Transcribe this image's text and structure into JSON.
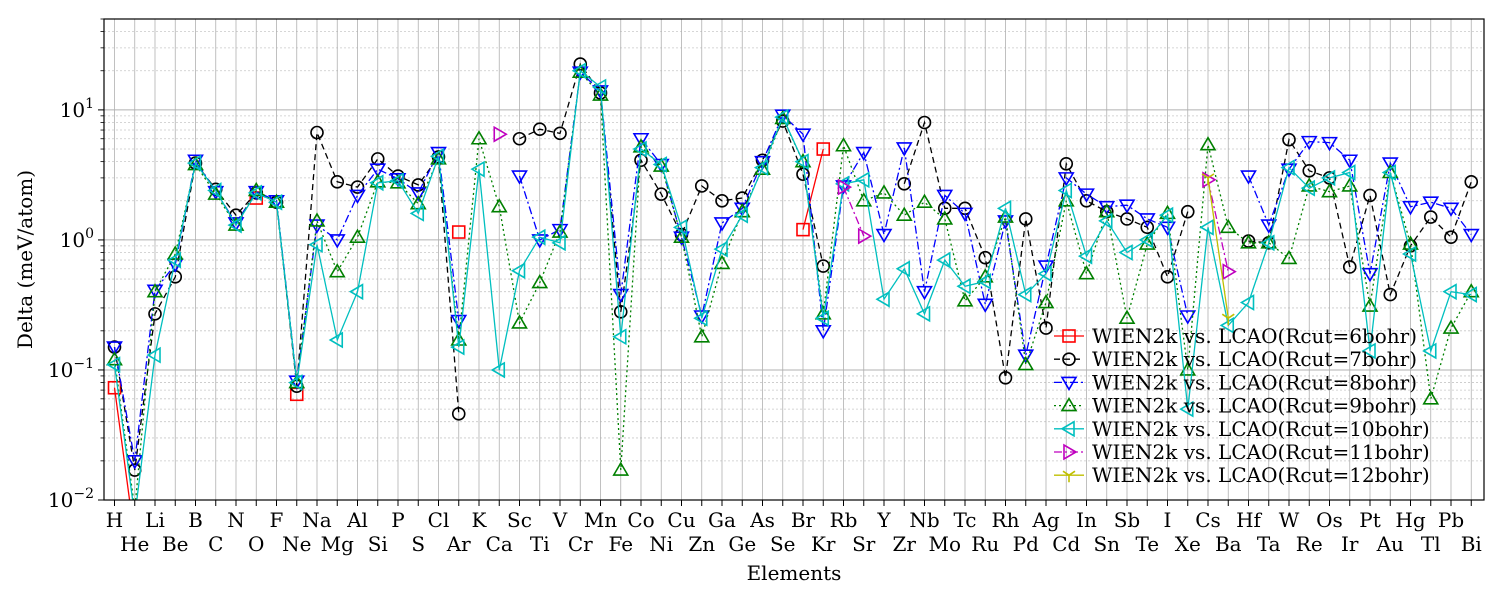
{
  "chart_data": {
    "type": "line",
    "xlabel": "Elements",
    "ylabel": "Delta (meV/atom)",
    "yscale": "log",
    "ylim": [
      0.01,
      50
    ],
    "ytick_labels": [
      {
        "value": 0.01,
        "base": "10",
        "exp": "−2"
      },
      {
        "value": 0.1,
        "base": "10",
        "exp": "−1"
      },
      {
        "value": 1,
        "base": "10",
        "exp": "0"
      },
      {
        "value": 10,
        "base": "10",
        "exp": "1"
      }
    ],
    "grid": true,
    "legend_position": "lower-right",
    "categories": [
      "H",
      "He",
      "Li",
      "Be",
      "B",
      "C",
      "N",
      "O",
      "F",
      "Ne",
      "Na",
      "Mg",
      "Al",
      "Si",
      "P",
      "S",
      "Cl",
      "Ar",
      "K",
      "Ca",
      "Sc",
      "Ti",
      "V",
      "Cr",
      "Mn",
      "Fe",
      "Co",
      "Ni",
      "Cu",
      "Zn",
      "Ga",
      "Ge",
      "As",
      "Se",
      "Br",
      "Kr",
      "Rb",
      "Sr",
      "Y",
      "Zr",
      "Nb",
      "Mo",
      "Tc",
      "Ru",
      "Rh",
      "Pd",
      "Ag",
      "Cd",
      "In",
      "Sn",
      "Sb",
      "Te",
      "I",
      "Xe",
      "Cs",
      "Ba",
      "Hf",
      "Ta",
      "W",
      "Re",
      "Os",
      "Ir",
      "Pt",
      "Au",
      "Hg",
      "Tl",
      "Pb",
      "Bi"
    ],
    "series": [
      {
        "name": "WIEN2k vs. LCAO(Rcut=6bohr)",
        "color": "#ff0000",
        "marker": "square",
        "dash": "",
        "values": [
          0.073,
          0.005,
          null,
          null,
          null,
          null,
          null,
          2.1,
          null,
          0.065,
          null,
          null,
          null,
          null,
          null,
          null,
          null,
          1.15,
          null,
          null,
          null,
          null,
          null,
          null,
          null,
          null,
          null,
          null,
          null,
          null,
          null,
          null,
          null,
          null,
          1.2,
          5.0,
          null,
          null,
          null,
          null,
          null,
          null,
          null,
          null,
          null,
          null,
          null,
          null,
          null,
          null,
          null,
          null,
          null,
          null,
          null,
          null,
          null,
          null,
          null,
          null,
          null,
          null,
          null,
          null,
          null,
          null,
          null,
          null
        ]
      },
      {
        "name": "WIEN2k vs. LCAO(Rcut=7bohr)",
        "color": "#000000",
        "marker": "circle",
        "dash": "6,4",
        "values": [
          0.15,
          0.017,
          0.27,
          0.52,
          3.9,
          2.45,
          1.55,
          2.3,
          1.95,
          0.075,
          6.7,
          2.8,
          2.55,
          4.2,
          3.1,
          2.65,
          4.35,
          0.046,
          null,
          null,
          6.0,
          7.1,
          6.6,
          22.5,
          13.5,
          0.28,
          4.1,
          2.25,
          1.1,
          2.6,
          2.0,
          2.1,
          4.1,
          8.2,
          3.2,
          0.63,
          null,
          null,
          null,
          2.7,
          8.0,
          1.75,
          1.75,
          0.73,
          0.087,
          1.45,
          0.21,
          3.85,
          2.0,
          1.65,
          1.45,
          1.25,
          0.52,
          1.65,
          null,
          null,
          0.98,
          0.95,
          5.9,
          3.4,
          3.0,
          0.62,
          2.2,
          0.38,
          0.9,
          1.5,
          1.05,
          2.8
        ]
      },
      {
        "name": "WIEN2k vs. LCAO(Rcut=8bohr)",
        "color": "#0000ff",
        "marker": "tri-down",
        "dash": "8,3,2,3",
        "values": [
          0.15,
          0.02,
          0.41,
          0.65,
          4.1,
          2.35,
          1.35,
          2.35,
          2.0,
          0.082,
          1.3,
          1.0,
          2.2,
          3.5,
          2.95,
          2.3,
          4.7,
          0.24,
          null,
          null,
          3.1,
          1.0,
          1.2,
          19.5,
          14.0,
          0.38,
          6.0,
          3.8,
          1.05,
          0.26,
          1.35,
          1.75,
          4.0,
          9.1,
          6.5,
          0.2,
          2.6,
          4.7,
          1.1,
          5.1,
          0.4,
          2.2,
          1.6,
          0.32,
          1.4,
          0.13,
          0.63,
          3.0,
          2.25,
          1.8,
          1.85,
          1.45,
          1.25,
          0.26,
          null,
          null,
          3.1,
          1.3,
          3.5,
          5.7,
          5.6,
          4.1,
          0.55,
          3.9,
          1.8,
          1.95,
          1.75,
          1.1
        ]
      },
      {
        "name": "WIEN2k vs. LCAO(Rcut=9bohr)",
        "color": "#008000",
        "marker": "tri-up",
        "dash": "2,3",
        "values": [
          0.12,
          0.0085,
          0.4,
          0.78,
          3.8,
          2.25,
          1.3,
          2.4,
          1.95,
          0.08,
          1.4,
          0.57,
          1.05,
          2.8,
          2.75,
          1.9,
          4.2,
          0.17,
          6.0,
          1.8,
          0.23,
          0.47,
          1.15,
          19.5,
          13.0,
          0.017,
          5.2,
          3.7,
          1.05,
          0.18,
          0.66,
          1.65,
          3.5,
          8.6,
          4.0,
          0.27,
          5.3,
          2.0,
          2.3,
          1.55,
          1.95,
          1.45,
          0.34,
          0.52,
          1.5,
          0.11,
          0.33,
          2.0,
          0.55,
          1.65,
          0.25,
          0.93,
          1.6,
          0.1,
          5.4,
          1.25,
          0.95,
          0.95,
          0.72,
          2.6,
          2.35,
          2.6,
          0.31,
          3.3,
          0.93,
          0.06,
          0.21,
          0.4
        ]
      },
      {
        "name": "WIEN2k vs. LCAO(Rcut=10bohr)",
        "color": "#00bfbf",
        "marker": "tri-left",
        "dash": "",
        "values": [
          0.11,
          0.0075,
          0.13,
          0.7,
          3.9,
          2.4,
          1.3,
          2.3,
          1.95,
          0.08,
          0.92,
          0.17,
          0.4,
          2.75,
          2.85,
          1.6,
          4.4,
          0.15,
          3.5,
          0.1,
          0.58,
          1.05,
          0.95,
          20.0,
          15.0,
          0.18,
          5.0,
          3.8,
          1.25,
          0.25,
          0.85,
          1.55,
          3.6,
          8.8,
          4.0,
          0.25,
          2.7,
          2.9,
          0.35,
          0.6,
          0.27,
          0.7,
          0.44,
          0.48,
          1.75,
          0.38,
          0.55,
          2.4,
          0.75,
          1.4,
          0.8,
          1.0,
          1.55,
          0.05,
          1.25,
          0.22,
          0.33,
          0.95,
          3.6,
          2.5,
          3.0,
          3.3,
          0.14,
          3.3,
          0.78,
          0.14,
          0.4,
          0.38
        ]
      },
      {
        "name": "WIEN2k vs. LCAO(Rcut=11bohr)",
        "color": "#bf00bf",
        "marker": "tri-right",
        "dash": "8,3,2,3",
        "values": [
          null,
          null,
          null,
          null,
          null,
          null,
          null,
          null,
          null,
          null,
          null,
          null,
          null,
          null,
          null,
          null,
          null,
          null,
          null,
          6.5,
          null,
          null,
          null,
          null,
          null,
          null,
          null,
          null,
          null,
          null,
          null,
          null,
          null,
          null,
          null,
          null,
          2.55,
          1.07,
          null,
          null,
          null,
          null,
          null,
          null,
          null,
          null,
          null,
          null,
          null,
          null,
          null,
          null,
          null,
          null,
          2.9,
          0.57,
          null,
          null,
          null,
          null,
          null,
          null,
          null,
          null,
          null,
          null,
          null,
          null
        ]
      },
      {
        "name": "WIEN2k vs. LCAO(Rcut=12bohr)",
        "color": "#bfbf00",
        "marker": "tri-y",
        "dash": "",
        "values": [
          null,
          null,
          null,
          null,
          null,
          null,
          null,
          null,
          null,
          null,
          null,
          null,
          null,
          null,
          null,
          null,
          null,
          null,
          null,
          null,
          null,
          null,
          null,
          null,
          null,
          null,
          null,
          null,
          null,
          null,
          null,
          null,
          null,
          null,
          null,
          null,
          null,
          null,
          null,
          null,
          null,
          null,
          null,
          null,
          null,
          null,
          null,
          null,
          null,
          null,
          null,
          null,
          null,
          null,
          3.0,
          0.25,
          null,
          null,
          null,
          null,
          null,
          null,
          null,
          null,
          null,
          null,
          null,
          null
        ]
      }
    ]
  }
}
